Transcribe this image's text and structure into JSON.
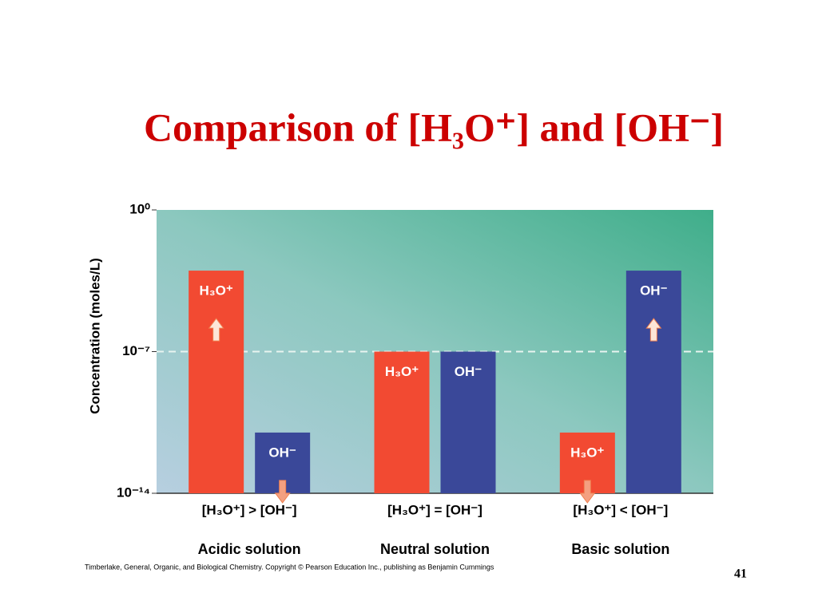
{
  "chart_data": {
    "type": "bar",
    "title": "Comparison of [H₃O⁺] and [OH⁻]",
    "ylabel": "Concentration (moles/L)",
    "log_scale": true,
    "ylim": [
      1e-14,
      1
    ],
    "yticks": [
      {
        "value": 1,
        "label": "10⁰"
      },
      {
        "value": 1e-07,
        "label": "10⁻⁷"
      },
      {
        "value": 1e-14,
        "label": "10⁻¹⁴"
      }
    ],
    "reference_line": 1e-07,
    "categories": [
      "Acidic solution",
      "Neutral solution",
      "Basic solution"
    ],
    "relations": [
      "[H₃O⁺] > [OH⁻]",
      "[H₃O⁺] = [OH⁻]",
      "[H₃O⁺] < [OH⁻]"
    ],
    "series": [
      {
        "name": "H₃O⁺",
        "color": "#f24a32",
        "values": [
          0.001,
          1e-07,
          1e-11
        ]
      },
      {
        "name": "OH⁻",
        "color": "#3a4899",
        "values": [
          1e-11,
          1e-07,
          0.001
        ]
      }
    ],
    "source": "Timberlake, General, Organic, and Biological Chemistry.  Copyright © Pearson Education Inc., publishing as Benjamin Cummings",
    "page_number": "41"
  }
}
